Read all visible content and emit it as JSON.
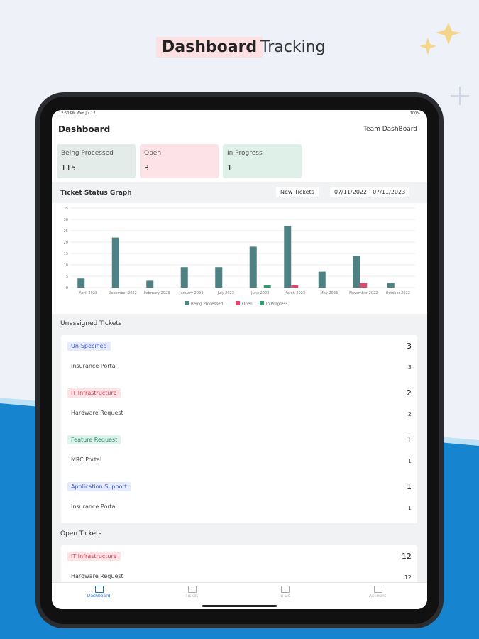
{
  "banner": {
    "highlight": "Dashboard",
    "title": "Tracking"
  },
  "status_bar": {
    "time": "12:50 PM  Wed Jul 12",
    "battery": "100%"
  },
  "app_header": {
    "title": "Dashboard",
    "team": "Team DashBoard"
  },
  "summary_cards": [
    {
      "label": "Being Processed",
      "count": 115
    },
    {
      "label": "Open",
      "count": 3
    },
    {
      "label": "In Progress",
      "count": 1
    }
  ],
  "graph": {
    "title": "Ticket Status Graph",
    "filter": "New Tickets",
    "date_range": "07/11/2022 - 07/11/2023"
  },
  "chart_data": {
    "type": "bar",
    "categories": [
      "April 2023",
      "December 2022",
      "February 2023",
      "January 2023",
      "July 2023",
      "June 2023",
      "March 2023",
      "May 2023",
      "November 2022",
      "October 2022"
    ],
    "series": [
      {
        "name": "Being Processed",
        "color": "#4d8183",
        "values": [
          4,
          22,
          3,
          9,
          9,
          18,
          27,
          7,
          14,
          2
        ]
      },
      {
        "name": "Open",
        "color": "#e2456a",
        "values": [
          0,
          0,
          0,
          0,
          0,
          0,
          1,
          0,
          2,
          0
        ]
      },
      {
        "name": "In Progress",
        "color": "#2f9c6c",
        "values": [
          0,
          0,
          0,
          0,
          0,
          1,
          0,
          0,
          0,
          0
        ]
      }
    ],
    "ylim": [
      0,
      35
    ],
    "yticks": [
      0,
      5,
      10,
      15,
      20,
      25,
      30,
      35
    ],
    "grid": true,
    "legend": "bottom"
  },
  "unassigned": {
    "title": "Unassigned Tickets",
    "groups": [
      {
        "tag": "Un-Specified",
        "count": 3,
        "items": [
          {
            "name": "Insurance Portal",
            "count": 3
          }
        ]
      },
      {
        "tag": "IT Infrastructure",
        "count": 2,
        "items": [
          {
            "name": "Hardware Request",
            "count": 2
          }
        ]
      },
      {
        "tag": "Feature Request",
        "count": 1,
        "items": [
          {
            "name": "MRC Portal",
            "count": 1
          }
        ]
      },
      {
        "tag": "Application Support",
        "count": 1,
        "items": [
          {
            "name": "Insurance Portal",
            "count": 1
          }
        ]
      }
    ]
  },
  "open": {
    "title": "Open Tickets",
    "groups": [
      {
        "tag": "IT Infrastructure",
        "count": 12,
        "items": [
          {
            "name": "Hardware Request",
            "count": 12
          }
        ]
      }
    ]
  },
  "nav": [
    "Dashboard",
    "Ticket",
    "To Do",
    "Account"
  ]
}
